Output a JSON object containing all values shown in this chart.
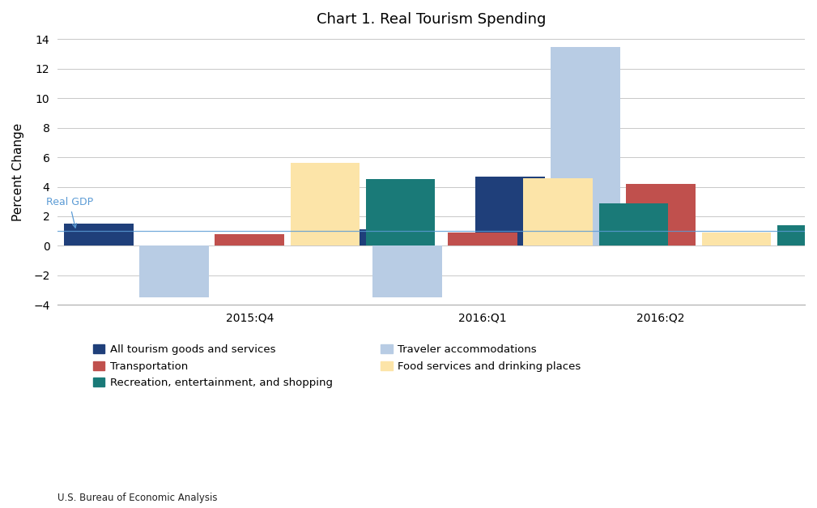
{
  "title": "Chart 1. Real Tourism Spending",
  "ylabel": "Percent Change",
  "source": "U.S. Bureau of Economic Analysis",
  "quarters": [
    "2015:Q4",
    "2016:Q1",
    "2016:Q2"
  ],
  "series": [
    {
      "name": "All tourism goods and services",
      "color": "#1f3f7a",
      "values": [
        1.5,
        1.1,
        4.7
      ]
    },
    {
      "name": "Traveler accommodations",
      "color": "#b8cce4",
      "values": [
        -3.5,
        -3.5,
        13.5
      ]
    },
    {
      "name": "Transportation",
      "color": "#c0504d",
      "values": [
        0.8,
        0.9,
        4.2
      ]
    },
    {
      "name": "Food services and drinking places",
      "color": "#fce4a8",
      "values": [
        5.6,
        4.6,
        0.9
      ]
    },
    {
      "name": "Recreation, entertainment, and shopping",
      "color": "#1a7a78",
      "values": [
        4.5,
        2.9,
        1.4
      ]
    }
  ],
  "real_gdp_line": 1.0,
  "ylim": [
    -4,
    14
  ],
  "yticks": [
    -4,
    -2,
    0,
    2,
    4,
    6,
    8,
    10,
    12,
    14
  ],
  "background_color": "#ffffff",
  "grid_color": "#c8c8c8",
  "annotation_color": "#5b9bd5",
  "annotation_text": "Real GDP",
  "bar_width": 0.11,
  "group_centers": [
    0.28,
    0.62,
    0.88
  ],
  "xlim": [
    0.0,
    1.09
  ]
}
